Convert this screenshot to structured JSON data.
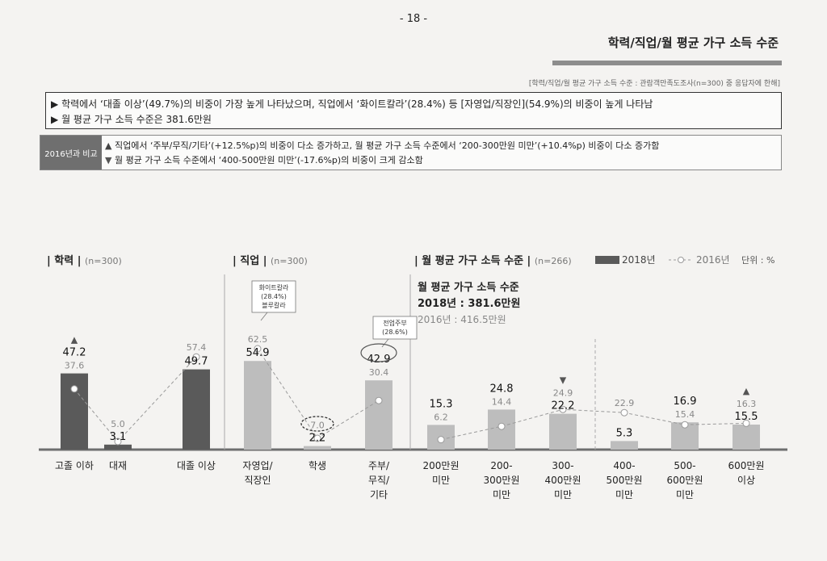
{
  "page_number": "- 18 -",
  "section_title": "학력/직업/월 평균 가구 소득 수준",
  "note": "[학력/직업/월 평균 가구 소득 수준 : 관람객만족도조사(n=300) 중 응답자에 한해]",
  "summary": {
    "line1": "학력에서 ‘대졸 이상’(49.7%)의 비중이 가장 높게 나타났으며, 직업에서 ‘화이트칼라’(28.4%) 등 [자영업/직장인](54.9%)의 비중이 높게 나타남",
    "line2": "월 평균 가구 소득 수준은 381.6만원",
    "bullet": "▶"
  },
  "compare": {
    "tag": "2016년과 비교",
    "up_marker": "▲",
    "down_marker": "▼",
    "line1": "직업에서 ‘주부/무직/기타’(+12.5%p)의 비중이 다소 증가하고, 월 평균 가구 소득 수준에서 ‘200-300만원 미만’(+10.4%p) 비중이 다소 증가함",
    "line2": "월 평균 가구 소득 수준에서 ‘400-500만원 미만’(-17.6%p)의 비중이 크게 감소함"
  },
  "colors": {
    "bar_dark": "#5a5a5a",
    "bar_light": "#bdbdbd",
    "line": "#9a9a9a",
    "axis": "#777777"
  },
  "legend": {
    "s2018": "2018년",
    "s2016": "2016년",
    "unit": "단위 : %"
  },
  "chart_data": [
    {
      "type": "bar",
      "title": "학력",
      "n": "(n=300)",
      "categories": [
        "고졸 이하",
        "대재",
        "대졸 이상"
      ],
      "series": [
        {
          "name": "2018년",
          "values": [
            47.2,
            3.1,
            49.7
          ]
        },
        {
          "name": "2016년",
          "values": [
            37.6,
            5.0,
            57.4
          ]
        }
      ],
      "markers": [
        "▲",
        "",
        ""
      ],
      "bar_style": "dark"
    },
    {
      "type": "bar",
      "title": "직업",
      "n": "(n=300)",
      "categories": [
        "자영업/\n직장인",
        "학생",
        "주부/\n무직/\n기타"
      ],
      "series": [
        {
          "name": "2018년",
          "values": [
            54.9,
            2.2,
            42.9
          ]
        },
        {
          "name": "2016년",
          "values": [
            62.5,
            7.0,
            30.4
          ]
        }
      ],
      "markers": [
        "",
        "",
        ""
      ],
      "callouts": [
        {
          "index": 0,
          "text": [
            "화이트칼라",
            "(28.4%)",
            "블루칼라"
          ]
        },
        {
          "index": 2,
          "text": [
            "전업주부",
            "(28.6%)"
          ]
        }
      ],
      "bar_style": "light"
    },
    {
      "type": "bar",
      "title": "월 평균 가구 소득 수준",
      "n": "(n=266)",
      "subtitle": {
        "heading": "월 평균 가구 소득 수준",
        "y2018": "2018년 : 381.6만원",
        "y2016": "2016년 : 416.5만원"
      },
      "categories": [
        "200만원\n미만",
        "200-\n300만원\n미만",
        "300-\n400만원\n미만",
        "400-\n500만원\n미만",
        "500-\n600만원\n미만",
        "600만원\n이상"
      ],
      "series": [
        {
          "name": "2018년",
          "values": [
            15.3,
            24.8,
            22.2,
            5.3,
            16.9,
            15.5
          ]
        },
        {
          "name": "2016년",
          "values": [
            6.2,
            14.4,
            24.9,
            22.9,
            15.4,
            16.3
          ]
        }
      ],
      "markers": [
        "",
        "",
        "▼",
        "",
        "",
        "▲"
      ],
      "bar_style": "light"
    }
  ]
}
